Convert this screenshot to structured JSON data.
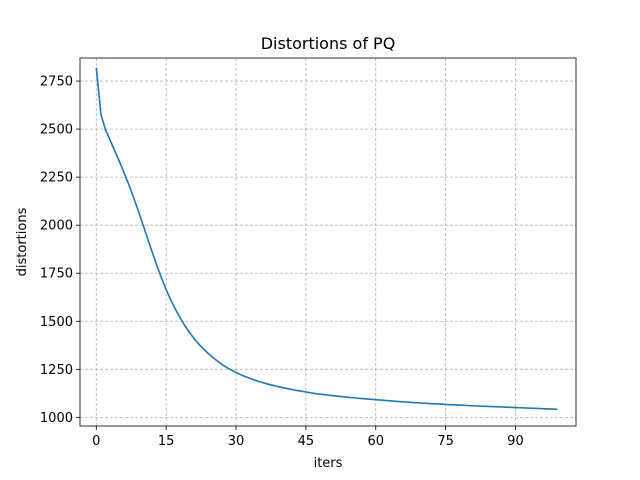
{
  "chart_data": {
    "type": "line",
    "title": "Distortions of PQ",
    "xlabel": "iters",
    "ylabel": "distortions",
    "xlim": [
      -3.5,
      103
    ],
    "ylim": [
      955,
      2870
    ],
    "xticks": [
      0,
      15,
      30,
      45,
      60,
      75,
      90
    ],
    "yticks": [
      1000,
      1250,
      1500,
      1750,
      2000,
      2250,
      2500,
      2750
    ],
    "grid": true,
    "series": [
      {
        "color": "#1f77b4",
        "x": [
          0,
          1,
          2,
          3,
          4,
          5,
          6,
          7,
          8,
          9,
          10,
          11,
          12,
          13,
          14,
          15,
          16,
          17,
          18,
          19,
          20,
          21,
          22,
          23,
          24,
          25,
          26,
          27,
          28,
          29,
          30,
          31,
          32,
          33,
          34,
          35,
          36,
          37,
          38,
          39,
          40,
          41,
          42,
          43,
          44,
          45,
          46,
          47,
          48,
          49,
          50,
          51,
          52,
          53,
          54,
          55,
          56,
          57,
          58,
          59,
          60,
          61,
          62,
          63,
          64,
          65,
          66,
          67,
          68,
          69,
          70,
          71,
          72,
          73,
          74,
          75,
          76,
          77,
          78,
          79,
          80,
          81,
          82,
          83,
          84,
          85,
          86,
          87,
          88,
          89,
          90,
          91,
          92,
          93,
          94,
          95,
          96,
          97,
          98,
          99
        ],
        "y": [
          2820,
          2575,
          2495,
          2440,
          2385,
          2330,
          2270,
          2210,
          2145,
          2075,
          2005,
          1932,
          1860,
          1790,
          1725,
          1665,
          1610,
          1562,
          1518,
          1478,
          1442,
          1410,
          1381,
          1356,
          1333,
          1312,
          1293,
          1275,
          1260,
          1246,
          1234,
          1222,
          1212,
          1203,
          1194,
          1186,
          1179,
          1172,
          1166,
          1160,
          1155,
          1150,
          1145,
          1140,
          1136,
          1132,
          1128,
          1124,
          1121,
          1118,
          1115,
          1112,
          1110,
          1107,
          1105,
          1102,
          1100,
          1098,
          1096,
          1094,
          1092,
          1090,
          1088,
          1086,
          1084,
          1082,
          1081,
          1079,
          1077,
          1076,
          1074,
          1073,
          1071,
          1070,
          1069,
          1067,
          1066,
          1065,
          1064,
          1063,
          1061,
          1060,
          1059,
          1058,
          1057,
          1056,
          1055,
          1054,
          1053,
          1052,
          1051,
          1050,
          1049,
          1048,
          1047,
          1046,
          1045,
          1044,
          1043,
          1042
        ]
      }
    ]
  }
}
